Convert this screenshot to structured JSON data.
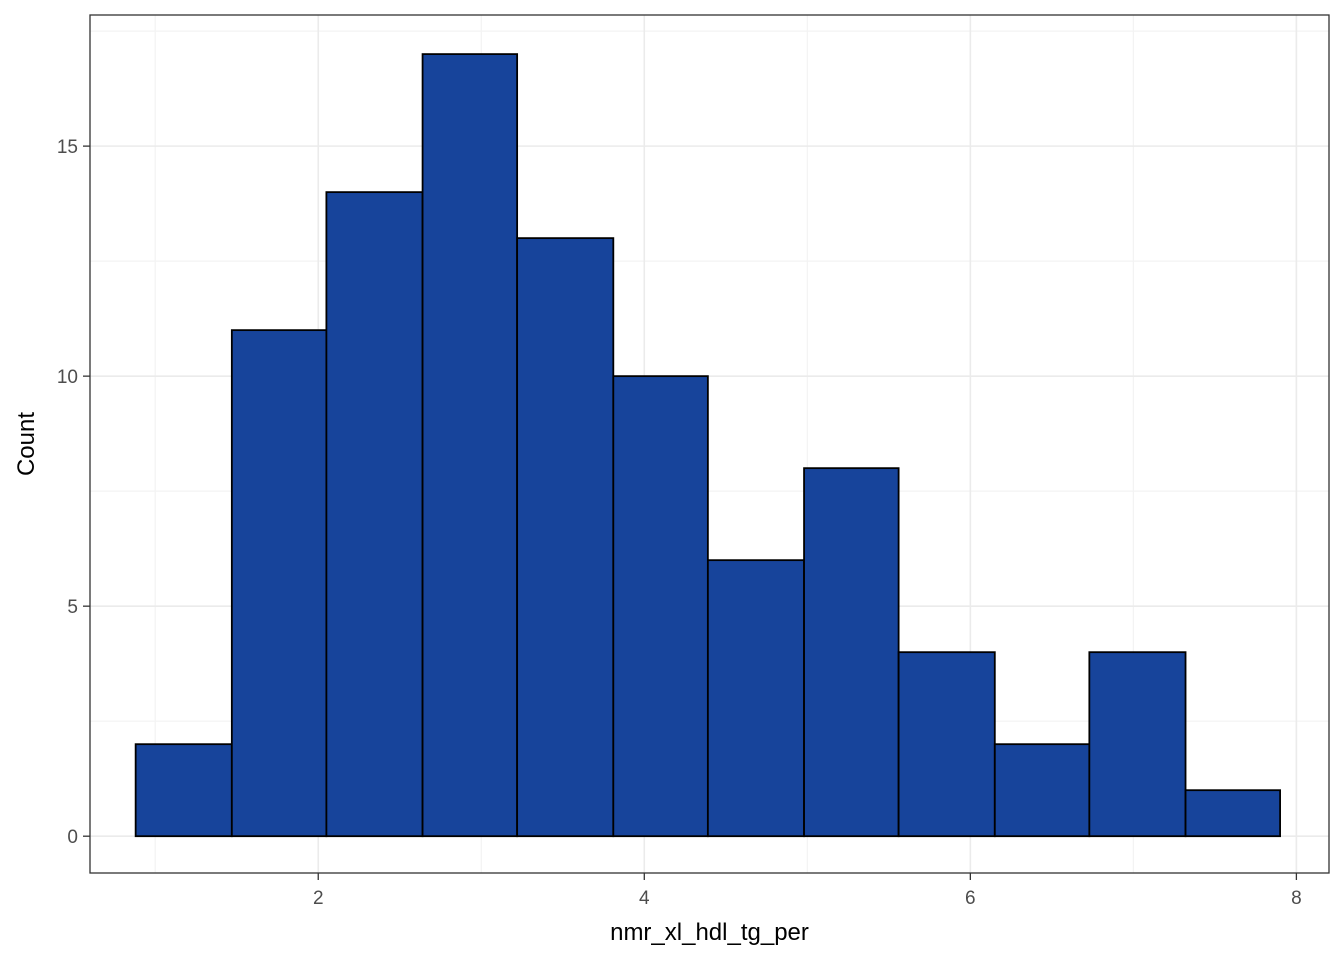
{
  "chart_data": {
    "type": "bar",
    "title": "",
    "xlabel": "nmr_xl_hdl_tg_per",
    "ylabel": "Count",
    "xlim": [
      0.6,
      8.2
    ],
    "ylim": [
      -0.8,
      17.85
    ],
    "x_ticks": [
      2,
      4,
      6,
      8
    ],
    "y_ticks": [
      0,
      5,
      10,
      15
    ],
    "x_tick_labels": [
      "2",
      "4",
      "6",
      "8"
    ],
    "y_tick_labels": [
      "0",
      "5",
      "10",
      "15"
    ],
    "grid": true,
    "legend": "none",
    "bins": [
      {
        "x0": 0.88,
        "x1": 1.47,
        "count": 2
      },
      {
        "x0": 1.47,
        "x1": 2.05,
        "count": 11
      },
      {
        "x0": 2.05,
        "x1": 2.64,
        "count": 14
      },
      {
        "x0": 2.64,
        "x1": 3.22,
        "count": 17
      },
      {
        "x0": 3.22,
        "x1": 3.81,
        "count": 13
      },
      {
        "x0": 3.81,
        "x1": 4.39,
        "count": 10
      },
      {
        "x0": 4.39,
        "x1": 4.98,
        "count": 6
      },
      {
        "x0": 4.98,
        "x1": 5.56,
        "count": 8
      },
      {
        "x0": 5.56,
        "x1": 6.15,
        "count": 4
      },
      {
        "x0": 6.15,
        "x1": 6.73,
        "count": 2
      },
      {
        "x0": 6.73,
        "x1": 7.32,
        "count": 4
      },
      {
        "x0": 7.32,
        "x1": 7.9,
        "count": 1
      }
    ],
    "colors": {
      "bar_fill": "#17449b",
      "bar_stroke": "#000000",
      "grid_major": "#ebebeb",
      "grid_minor": "#f3f3f3",
      "panel_border": "#333333"
    }
  }
}
